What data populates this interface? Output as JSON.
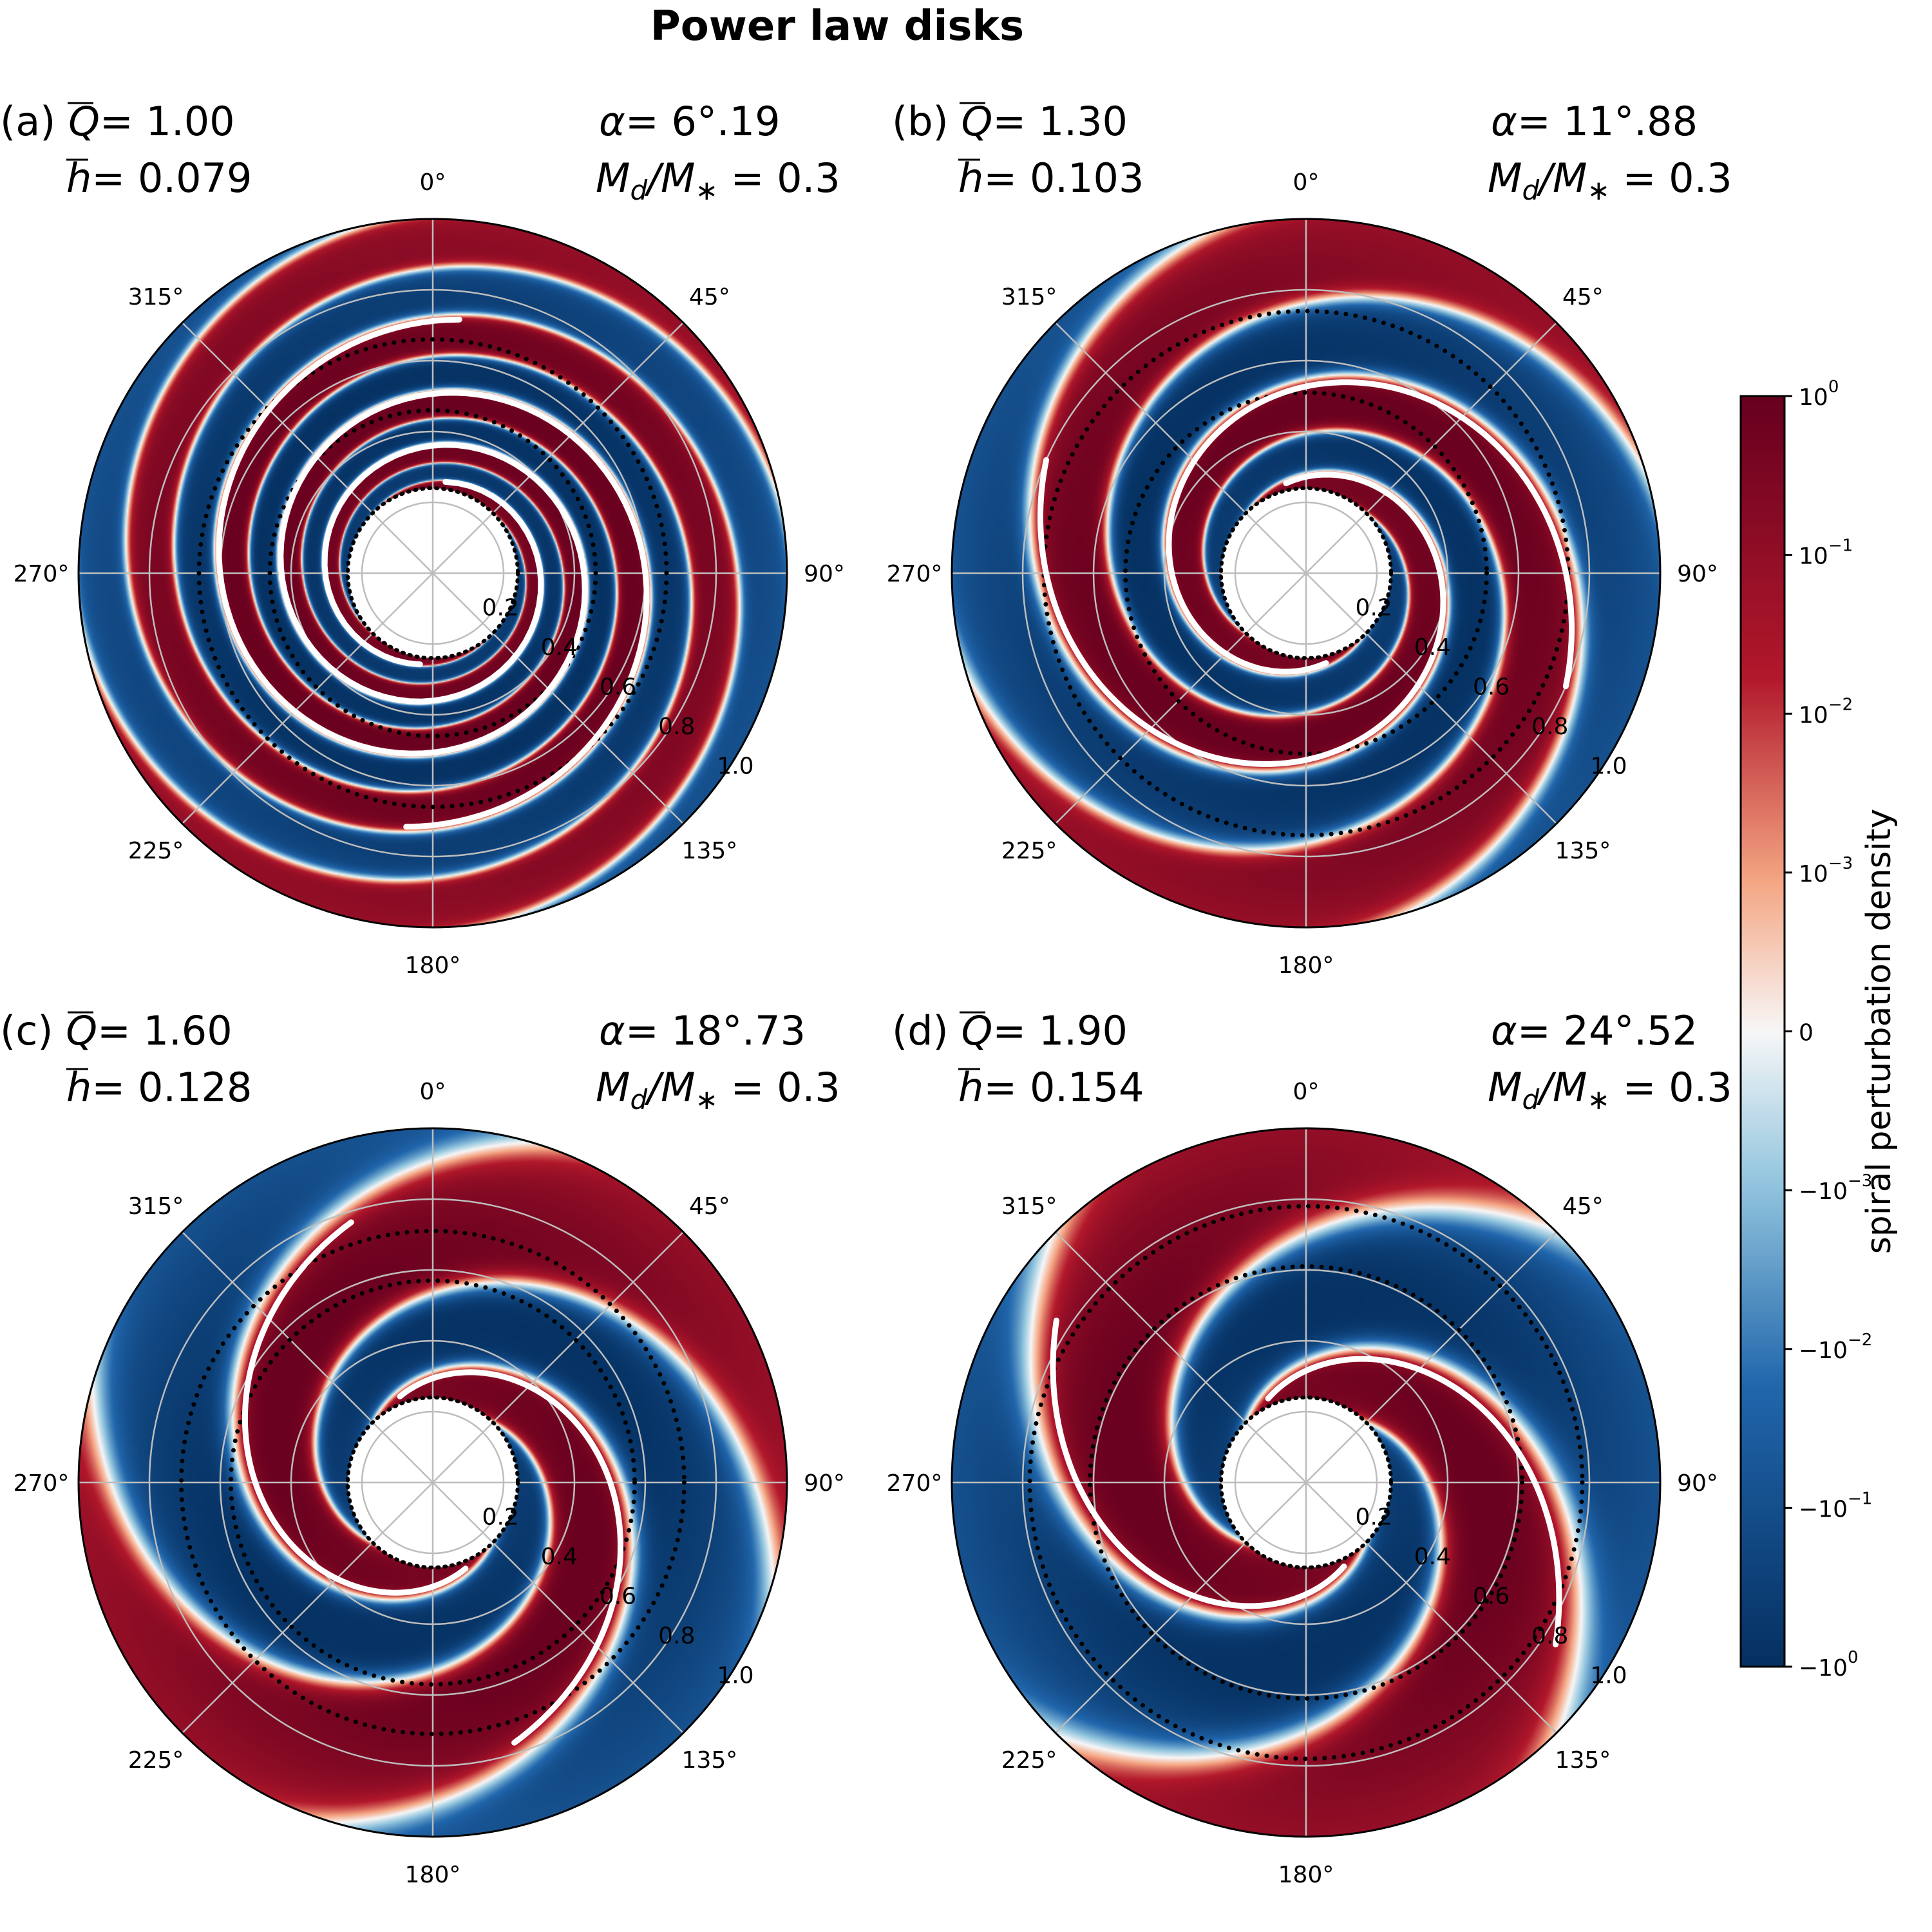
{
  "figure": {
    "title": "Power law disks"
  },
  "colors": {
    "max": "#67001f",
    "mid_pos": "#b2182b",
    "light_pos": "#f4a582",
    "zero": "#f7f7f7",
    "light_neg": "#92c5de",
    "mid_neg": "#2166ac",
    "min": "#053061"
  },
  "chart_data": [
    {
      "type": "polar-heatmap",
      "panel_label": "(a)",
      "q_text": "= 1.00",
      "h_text": "= 0.079",
      "alpha_text": "= 6°.19",
      "mass_text": "= 0.3",
      "Q": 1.0,
      "h": 0.079,
      "alpha_deg": 6.19,
      "Md_over_Mstar": 0.3,
      "theta_ticks": [
        "0°",
        "45°",
        "90°",
        "135°",
        "180°",
        "225°",
        "270°",
        "315°"
      ],
      "r_ticks": [
        "0.2",
        "0.4",
        "0.6",
        "0.8",
        "1.0"
      ],
      "rlim": [
        0,
        1.0
      ],
      "inner_hole_radius": 0.24,
      "dotted_circle_radii": [
        0.46,
        0.66
      ],
      "arms": 2,
      "pitch_deg": 6.19
    },
    {
      "type": "polar-heatmap",
      "panel_label": "(b)",
      "q_text": "= 1.30",
      "h_text": "= 0.103",
      "alpha_text": "= 11°.88",
      "mass_text": "= 0.3",
      "Q": 1.3,
      "h": 0.103,
      "alpha_deg": 11.88,
      "Md_over_Mstar": 0.3,
      "theta_ticks": [
        "0°",
        "45°",
        "90°",
        "135°",
        "180°",
        "225°",
        "270°",
        "315°"
      ],
      "r_ticks": [
        "0.2",
        "0.4",
        "0.6",
        "0.8",
        "1.0"
      ],
      "rlim": [
        0,
        1.0
      ],
      "inner_hole_radius": 0.24,
      "dotted_circle_radii": [
        0.51,
        0.74
      ],
      "arms": 2,
      "pitch_deg": 11.88
    },
    {
      "type": "polar-heatmap",
      "panel_label": "(c)",
      "q_text": "= 1.60",
      "h_text": "= 0.128",
      "alpha_text": "= 18°.73",
      "mass_text": "= 0.3",
      "Q": 1.6,
      "h": 0.128,
      "alpha_deg": 18.73,
      "Md_over_Mstar": 0.3,
      "theta_ticks": [
        "0°",
        "45°",
        "90°",
        "135°",
        "180°",
        "225°",
        "270°",
        "315°"
      ],
      "r_ticks": [
        "0.2",
        "0.4",
        "0.6",
        "0.8",
        "1.0"
      ],
      "rlim": [
        0,
        1.0
      ],
      "inner_hole_radius": 0.24,
      "dotted_circle_radii": [
        0.57,
        0.71
      ],
      "arms": 2,
      "pitch_deg": 18.73
    },
    {
      "type": "polar-heatmap",
      "panel_label": "(d)",
      "q_text": "= 1.90",
      "h_text": "= 0.154",
      "alpha_text": "= 24°.52",
      "mass_text": "= 0.3",
      "Q": 1.9,
      "h": 0.154,
      "alpha_deg": 24.52,
      "Md_over_Mstar": 0.3,
      "theta_ticks": [
        "0°",
        "45°",
        "90°",
        "135°",
        "180°",
        "225°",
        "270°",
        "315°"
      ],
      "r_ticks": [
        "0.2",
        "0.4",
        "0.6",
        "0.8",
        "1.0"
      ],
      "rlim": [
        0,
        1.0
      ],
      "inner_hole_radius": 0.24,
      "dotted_circle_radii": [
        0.61,
        0.78
      ],
      "arms": 2,
      "pitch_deg": 24.52
    }
  ],
  "colorbar": {
    "label": "spiral perturbation density",
    "scale": "symlog",
    "range": [
      -1,
      1
    ],
    "ticks": [
      {
        "base": "10",
        "exp": "0",
        "value": 1
      },
      {
        "base": "10",
        "exp": "−1",
        "value": 0.1
      },
      {
        "base": "10",
        "exp": "−2",
        "value": 0.01
      },
      {
        "base": "10",
        "exp": "−3",
        "value": 0.001
      },
      {
        "base": "0",
        "exp": "",
        "value": 0
      },
      {
        "base": "−10",
        "exp": "−3",
        "value": -0.001
      },
      {
        "base": "−10",
        "exp": "−2",
        "value": -0.01
      },
      {
        "base": "−10",
        "exp": "−1",
        "value": -0.1
      },
      {
        "base": "−10",
        "exp": "0",
        "value": -1
      }
    ]
  }
}
